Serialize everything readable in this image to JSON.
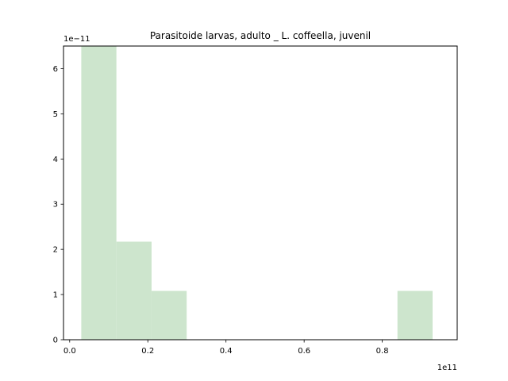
{
  "chart_data": {
    "type": "bar",
    "title": "Parasitoide larvas, adulto _ L. coffeella, juvenil",
    "xlabel": "",
    "ylabel": "",
    "x_offset_text": "1e11",
    "y_offset_text": "1e−11",
    "x_scale": 100000000000.0,
    "y_scale": 1e-11,
    "xlim": [
      -0.0158,
      0.9917
    ],
    "ylim": [
      0,
      6.5
    ],
    "grid": false,
    "bar_color": "#cde5cd",
    "bin_edges": [
      0.0297,
      0.1196,
      0.2095,
      0.2994,
      0.3893,
      0.4792,
      0.5691,
      0.659,
      0.7489,
      0.8388,
      0.9287
    ],
    "values": [
      6.5,
      2.17,
      1.08,
      0,
      0,
      0,
      0,
      0,
      0,
      1.08
    ],
    "x_ticks": [
      0.0,
      0.2,
      0.4,
      0.6,
      0.8
    ],
    "x_tick_labels": [
      "0.0",
      "0.2",
      "0.4",
      "0.6",
      "0.8"
    ],
    "y_ticks": [
      0,
      1,
      2,
      3,
      4,
      5,
      6
    ],
    "y_tick_labels": [
      "0",
      "1",
      "2",
      "3",
      "4",
      "5",
      "6"
    ]
  }
}
